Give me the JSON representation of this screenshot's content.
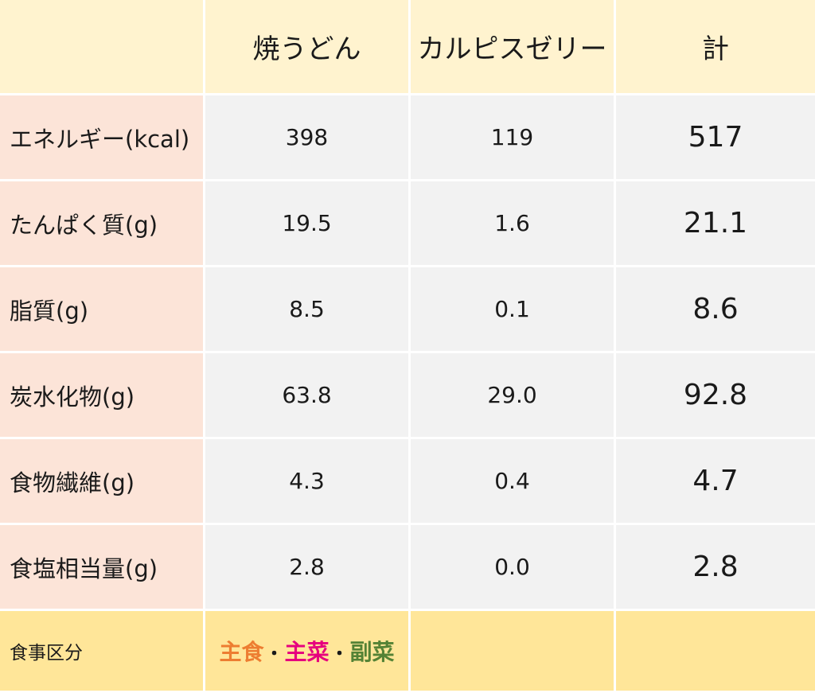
{
  "header": {
    "corner": "",
    "columns": [
      "焼うどん",
      "カルピスゼリー",
      "計"
    ]
  },
  "rows": [
    {
      "label": "エネルギー(kcal)",
      "values": [
        "398",
        "119",
        "517"
      ]
    },
    {
      "label": "たんぱく質(g)",
      "values": [
        "19.5",
        "1.6",
        "21.1"
      ]
    },
    {
      "label": "脂質(g)",
      "values": [
        "8.5",
        "0.1",
        "8.6"
      ]
    },
    {
      "label": "炭水化物(g)",
      "values": [
        "63.8",
        "29.0",
        "92.8"
      ]
    },
    {
      "label": "食物繊維(g)",
      "values": [
        "4.3",
        "0.4",
        "4.7"
      ]
    },
    {
      "label": "食塩相当量(g)",
      "values": [
        "2.8",
        "0.0",
        "2.8"
      ]
    }
  ],
  "footer": {
    "label": "食事区分",
    "categories": [
      {
        "text": "主食",
        "color": "#ed7d31"
      },
      {
        "text": "主菜",
        "color": "#e6007e"
      },
      {
        "text": "副菜",
        "color": "#548235"
      }
    ],
    "separator": "・"
  },
  "colors": {
    "header_bg": "#fff3cf",
    "label_bg": "#fce4d8",
    "value_bg": "#f2f2f2",
    "footer_bg": "#ffe699"
  }
}
